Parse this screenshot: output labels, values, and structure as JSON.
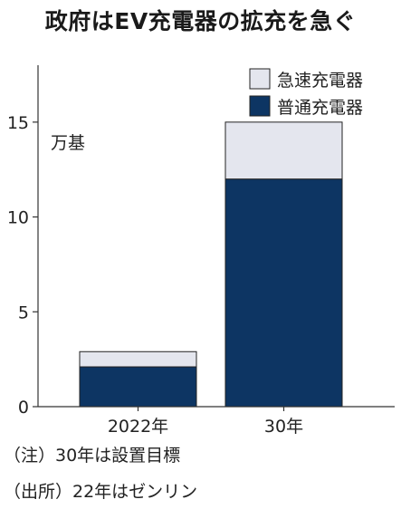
{
  "colors": {
    "fast": "#e4e6ee",
    "normal": "#0d3563",
    "axis": "#333333",
    "stroke": "#222222"
  },
  "chart_data": {
    "type": "bar",
    "stacked": true,
    "title": "政府はEV充電器の拡充を急ぐ",
    "unit_label": "万基",
    "categories": [
      "2022年",
      "30年"
    ],
    "series": [
      {
        "name": "普通充電器",
        "values": [
          2.1,
          12
        ]
      },
      {
        "name": "急速充電器",
        "values": [
          0.8,
          3
        ]
      }
    ],
    "ylim": [
      0,
      18
    ],
    "yticks": [
      0,
      5,
      10,
      15
    ],
    "legend_position": "top-right",
    "grid": false
  },
  "notes": {
    "note1": "（注）30年は設置目標",
    "note2": "（出所）22年はゼンリン"
  }
}
